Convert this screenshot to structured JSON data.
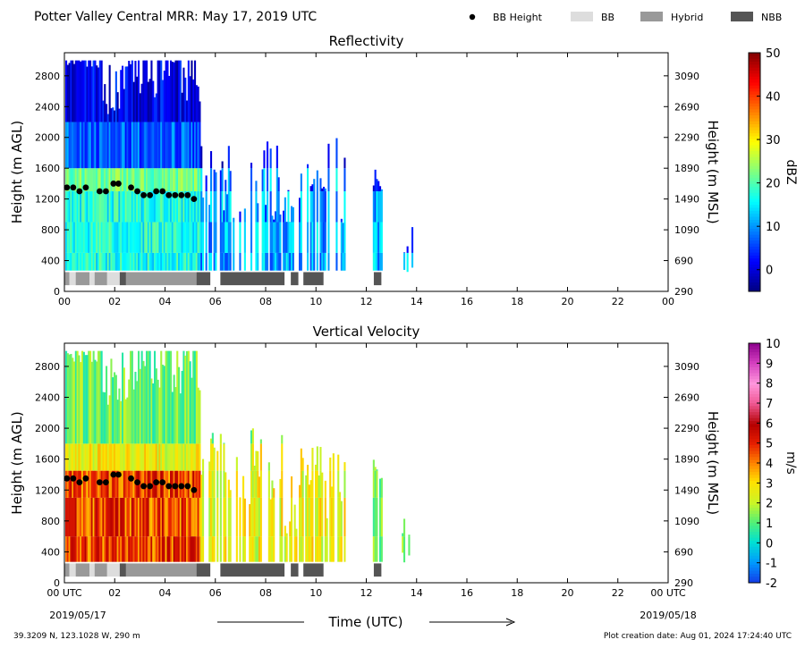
{
  "page": {
    "title": "Potter Valley Central MRR:  May 17, 2019 UTC",
    "xlabel": "Time (UTC)",
    "start_date": "2019/05/17",
    "end_date": "2019/05/18",
    "location": "39.3209 N, 123.1028 W, 290 m",
    "creation": "Plot creation date: Aug 01, 2024 17:24:40 UTC"
  },
  "legend": [
    {
      "label": "BB Height",
      "kind": "dot",
      "color": "#000000"
    },
    {
      "label": "BB",
      "kind": "rect",
      "color": "#dddddd"
    },
    {
      "label": "Hybrid",
      "kind": "rect",
      "color": "#999999"
    },
    {
      "label": "NBB",
      "kind": "rect",
      "color": "#555555"
    }
  ],
  "chart_data": [
    {
      "type": "heatmap",
      "title": "Reflectivity",
      "ylabel": "Height (m AGL)",
      "ylabel_right": "Height (m MSL)",
      "xlim": [
        0,
        24
      ],
      "ylim": [
        0,
        3100
      ],
      "x_tick_labels": [
        "00",
        "02",
        "04",
        "06",
        "08",
        "10",
        "12",
        "14",
        "16",
        "18",
        "20",
        "22",
        "00"
      ],
      "y_ticks": [
        0,
        400,
        800,
        1200,
        1600,
        2000,
        2400,
        2800
      ],
      "y_ticks_right": [
        290,
        690,
        1090,
        1490,
        1890,
        2290,
        2690,
        3090
      ],
      "colorbar": {
        "label": "dBZ",
        "min": -5,
        "max": 50,
        "ticks": [
          0,
          10,
          20,
          30,
          40,
          50
        ]
      },
      "bb_height": {
        "x": [
          0.1,
          0.35,
          0.6,
          0.85,
          1.4,
          1.65,
          1.95,
          2.15,
          2.65,
          2.9,
          3.15,
          3.4,
          3.65,
          3.9,
          4.15,
          4.4,
          4.65,
          4.9,
          5.15
        ],
        "y": [
          1350,
          1350,
          1300,
          1350,
          1300,
          1300,
          1400,
          1400,
          1350,
          1300,
          1250,
          1250,
          1300,
          1300,
          1250,
          1250,
          1250,
          1250,
          1200
        ]
      },
      "bb_classification": [
        {
          "start": 0.0,
          "end": 0.2,
          "class": "Hybrid"
        },
        {
          "start": 0.2,
          "end": 0.45,
          "class": "BB"
        },
        {
          "start": 0.45,
          "end": 1.0,
          "class": "Hybrid"
        },
        {
          "start": 1.0,
          "end": 1.2,
          "class": "BB"
        },
        {
          "start": 1.2,
          "end": 1.7,
          "class": "Hybrid"
        },
        {
          "start": 1.7,
          "end": 2.2,
          "class": "BB"
        },
        {
          "start": 2.2,
          "end": 2.45,
          "class": "NBB"
        },
        {
          "start": 2.45,
          "end": 5.25,
          "class": "Hybrid"
        },
        {
          "start": 5.25,
          "end": 5.8,
          "class": "NBB"
        },
        {
          "start": 6.2,
          "end": 8.75,
          "class": "NBB"
        },
        {
          "start": 9.0,
          "end": 9.3,
          "class": "NBB"
        },
        {
          "start": 9.5,
          "end": 10.3,
          "class": "NBB"
        },
        {
          "start": 12.3,
          "end": 12.6,
          "class": "NBB"
        }
      ]
    },
    {
      "type": "heatmap",
      "title": "Vertical Velocity",
      "ylabel": "Height (m AGL)",
      "ylabel_right": "Height (m MSL)",
      "xlim": [
        0,
        24
      ],
      "ylim": [
        0,
        3100
      ],
      "x_tick_labels": [
        "00 UTC",
        "02",
        "04",
        "06",
        "08",
        "10",
        "12",
        "14",
        "16",
        "18",
        "20",
        "22",
        "00 UTC"
      ],
      "y_ticks": [
        0,
        400,
        800,
        1200,
        1600,
        2000,
        2400,
        2800
      ],
      "y_ticks_right": [
        290,
        690,
        1090,
        1490,
        1890,
        2290,
        2690,
        3090
      ],
      "colorbar": {
        "label": "m/s",
        "min": -2,
        "max": 10,
        "ticks": [
          -2,
          -1,
          0,
          1,
          2,
          3,
          4,
          5,
          6,
          7,
          8,
          9,
          10
        ]
      },
      "bb_height": {
        "x": [
          0.1,
          0.35,
          0.6,
          0.85,
          1.4,
          1.65,
          1.95,
          2.15,
          2.65,
          2.9,
          3.15,
          3.4,
          3.65,
          3.9,
          4.15,
          4.4,
          4.65,
          4.9,
          5.15
        ],
        "y": [
          1350,
          1350,
          1300,
          1350,
          1300,
          1300,
          1400,
          1400,
          1350,
          1300,
          1250,
          1250,
          1300,
          1300,
          1250,
          1250,
          1250,
          1250,
          1200
        ]
      },
      "bb_classification": [
        {
          "start": 0.0,
          "end": 0.2,
          "class": "Hybrid"
        },
        {
          "start": 0.2,
          "end": 0.45,
          "class": "BB"
        },
        {
          "start": 0.45,
          "end": 1.0,
          "class": "Hybrid"
        },
        {
          "start": 1.0,
          "end": 1.2,
          "class": "BB"
        },
        {
          "start": 1.2,
          "end": 1.7,
          "class": "Hybrid"
        },
        {
          "start": 1.7,
          "end": 2.2,
          "class": "BB"
        },
        {
          "start": 2.2,
          "end": 2.45,
          "class": "NBB"
        },
        {
          "start": 2.45,
          "end": 5.25,
          "class": "Hybrid"
        },
        {
          "start": 5.25,
          "end": 5.8,
          "class": "NBB"
        },
        {
          "start": 6.2,
          "end": 8.75,
          "class": "NBB"
        },
        {
          "start": 9.0,
          "end": 9.3,
          "class": "NBB"
        },
        {
          "start": 9.5,
          "end": 10.3,
          "class": "NBB"
        },
        {
          "start": 12.3,
          "end": 12.6,
          "class": "NBB"
        }
      ]
    }
  ]
}
